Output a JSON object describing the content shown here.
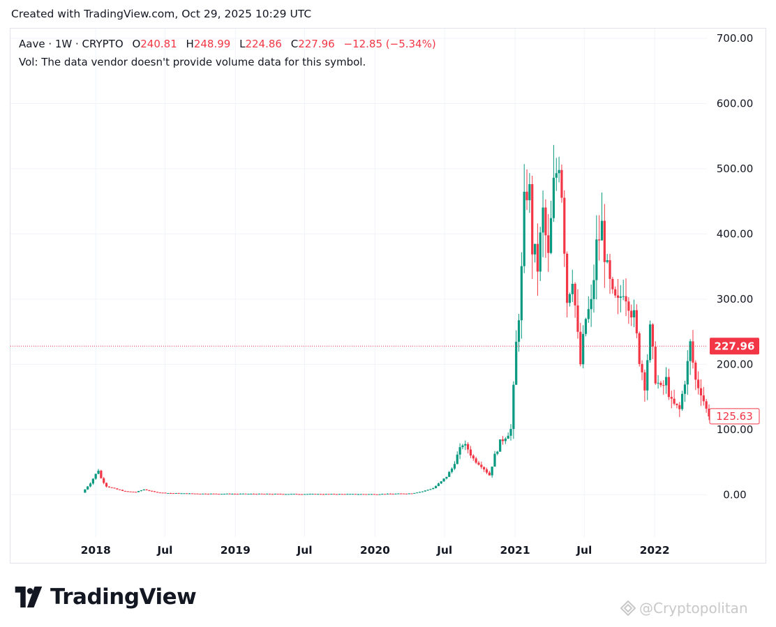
{
  "caption": "Created with TradingView.com, Oct 29, 2025 10:29 UTC",
  "legend": {
    "symbol": "Aave · 1W · CRYPTO",
    "open_label": "O",
    "open": "240.81",
    "high_label": "H",
    "high": "248.99",
    "low_label": "L",
    "low": "224.86",
    "close_label": "C",
    "close": "227.96",
    "change": "−12.85 (−5.34%)"
  },
  "volume_note": "Vol: The data vendor doesn't provide volume data for this symbol.",
  "brand": {
    "name": "TradingView",
    "icon": "tradingview-logo-icon"
  },
  "watermark": {
    "text": "@Cryptopolitan",
    "icon": "cryptopolitan-logo-icon"
  },
  "colors": {
    "up": "#089981",
    "down": "#f23645",
    "grid": "#f0f3fa",
    "text": "#131722"
  },
  "chart_data": {
    "type": "candlestick",
    "interval": "1W",
    "y_range": [
      -65,
      715
    ],
    "y_ticks": [
      {
        "value": 0,
        "label": "0.00"
      },
      {
        "value": 100,
        "label": "100.00"
      },
      {
        "value": 200,
        "label": "200.00"
      },
      {
        "value": 300,
        "label": "300.00"
      },
      {
        "value": 400,
        "label": "400.00"
      },
      {
        "value": 500,
        "label": "500.00"
      },
      {
        "value": 600,
        "label": "600.00"
      },
      {
        "value": 700,
        "label": "700.00"
      }
    ],
    "x_ticks": [
      {
        "date": "2018-01-01",
        "label": "2018"
      },
      {
        "date": "2018-07-01",
        "label": "Jul"
      },
      {
        "date": "2019-01-01",
        "label": "2019"
      },
      {
        "date": "2019-07-01",
        "label": "Jul"
      },
      {
        "date": "2020-01-01",
        "label": "2020"
      },
      {
        "date": "2020-07-01",
        "label": "Jul"
      },
      {
        "date": "2021-01-01",
        "label": "2021"
      },
      {
        "date": "2021-07-01",
        "label": "Jul"
      },
      {
        "date": "2022-01-01",
        "label": "2022"
      }
    ],
    "x_range": [
      "2017-11-27",
      "2022-05-23"
    ],
    "last_price": {
      "value": 227.96,
      "label": "227.96"
    },
    "marked_price": {
      "value": 125.63,
      "label": "125.63"
    },
    "price_anchors": [
      [
        "2017-11-27",
        3
      ],
      [
        "2017-12-18",
        18
      ],
      [
        "2018-01-08",
        38
      ],
      [
        "2018-01-15",
        25
      ],
      [
        "2018-01-29",
        13
      ],
      [
        "2018-02-19",
        9
      ],
      [
        "2018-03-19",
        5
      ],
      [
        "2018-04-16",
        4
      ],
      [
        "2018-05-07",
        8
      ],
      [
        "2018-06-04",
        4
      ],
      [
        "2018-07-02",
        2.5
      ],
      [
        "2018-10-01",
        1.5
      ],
      [
        "2019-06-03",
        1
      ],
      [
        "2020-01-06",
        0.8
      ],
      [
        "2020-04-06",
        2
      ],
      [
        "2020-05-04",
        5
      ],
      [
        "2020-06-01",
        10
      ],
      [
        "2020-06-22",
        20
      ],
      [
        "2020-07-06",
        28
      ],
      [
        "2020-07-20",
        40
      ],
      [
        "2020-08-03",
        60
      ],
      [
        "2020-08-17",
        78
      ],
      [
        "2020-08-31",
        70
      ],
      [
        "2020-09-14",
        55
      ],
      [
        "2020-10-05",
        45
      ],
      [
        "2020-10-26",
        30
      ],
      [
        "2020-11-09",
        60
      ],
      [
        "2020-11-23",
        80
      ],
      [
        "2020-12-07",
        90
      ],
      [
        "2020-12-21",
        100
      ],
      [
        "2020-12-28",
        160
      ],
      [
        "2021-01-04",
        230
      ],
      [
        "2021-01-11",
        280
      ],
      [
        "2021-01-18",
        340
      ],
      [
        "2021-01-25",
        440
      ],
      [
        "2021-02-01",
        470
      ],
      [
        "2021-02-08",
        460
      ],
      [
        "2021-02-15",
        380
      ],
      [
        "2021-03-01",
        350
      ],
      [
        "2021-03-15",
        430
      ],
      [
        "2021-03-29",
        360
      ],
      [
        "2021-04-12",
        470
      ],
      [
        "2021-04-26",
        520
      ],
      [
        "2021-05-03",
        470
      ],
      [
        "2021-05-17",
        300
      ],
      [
        "2021-05-31",
        340
      ],
      [
        "2021-06-14",
        240
      ],
      [
        "2021-06-21",
        200
      ],
      [
        "2021-07-05",
        270
      ],
      [
        "2021-07-19",
        290
      ],
      [
        "2021-08-02",
        380
      ],
      [
        "2021-08-16",
        410
      ],
      [
        "2021-08-30",
        340
      ],
      [
        "2021-09-13",
        300
      ],
      [
        "2021-09-27",
        290
      ],
      [
        "2021-10-11",
        320
      ],
      [
        "2021-10-25",
        300
      ],
      [
        "2021-11-08",
        270
      ],
      [
        "2021-11-22",
        210
      ],
      [
        "2021-12-06",
        170
      ],
      [
        "2021-12-20",
        250
      ],
      [
        "2022-01-03",
        180
      ],
      [
        "2022-01-17",
        160
      ],
      [
        "2022-01-31",
        175
      ],
      [
        "2022-02-14",
        140
      ],
      [
        "2022-03-07",
        130
      ],
      [
        "2022-03-28",
        200
      ],
      [
        "2022-04-04",
        230
      ],
      [
        "2022-04-18",
        175
      ],
      [
        "2022-05-02",
        160
      ],
      [
        "2022-05-16",
        130
      ],
      [
        "2022-05-23",
        125
      ]
    ]
  }
}
